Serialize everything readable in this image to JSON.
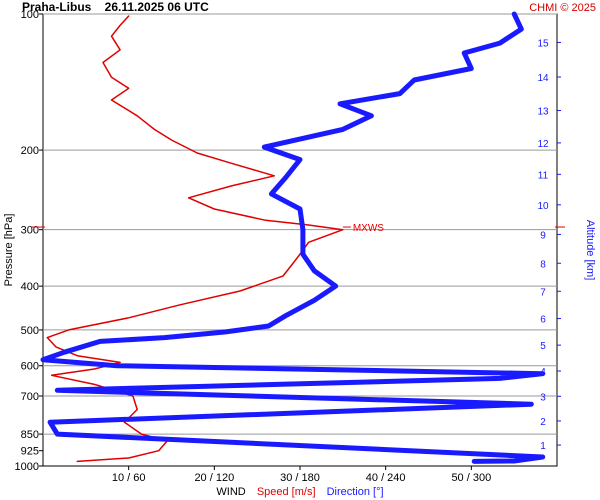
{
  "chart_data": {
    "type": "line",
    "title": "Praha-Libus    26.11.2025 06 UTC",
    "copyright": "CHMI © 2025",
    "ylabel_left": "Pressure [hPa]",
    "ylabel_right": "Altitude [km]",
    "xlabel_parts": [
      "WIND",
      "Speed [m/s]",
      "Direction [°]"
    ],
    "pressure_ticks": [
      100,
      200,
      300,
      400,
      500,
      600,
      700,
      850,
      925,
      1000
    ],
    "pressure_gridlines": [
      100,
      200,
      300,
      400,
      500,
      600,
      700,
      850
    ],
    "altitude_ticks_km": [
      1,
      2,
      3,
      4,
      5,
      6,
      7,
      8,
      9,
      10,
      11,
      12,
      13,
      14,
      15
    ],
    "speed_range_ms": [
      0,
      60
    ],
    "direction_range_deg": [
      0,
      360
    ],
    "x_ticks": [
      {
        "speed": 10,
        "direction": 60,
        "label": "10 / 60"
      },
      {
        "speed": 20,
        "direction": 120,
        "label": "20 / 120"
      },
      {
        "speed": 30,
        "direction": 180,
        "label": "30 / 180"
      },
      {
        "speed": 40,
        "direction": 240,
        "label": "40 / 240"
      },
      {
        "speed": 50,
        "direction": 300,
        "label": "50 / 300"
      }
    ],
    "max_wind_marker": {
      "label": "MXWS",
      "pressure_hpa": 296,
      "speed_ms": 35
    },
    "series": [
      {
        "name": "Speed [m/s]",
        "color": "#e00000",
        "points": [
          {
            "p": 977,
            "v": 4
          },
          {
            "p": 960,
            "v": 10
          },
          {
            "p": 925,
            "v": 13.5
          },
          {
            "p": 880,
            "v": 14.5
          },
          {
            "p": 850,
            "v": 11.5
          },
          {
            "p": 800,
            "v": 9.5
          },
          {
            "p": 750,
            "v": 11
          },
          {
            "p": 700,
            "v": 10.5
          },
          {
            "p": 660,
            "v": 6
          },
          {
            "p": 630,
            "v": 1
          },
          {
            "p": 610,
            "v": 6
          },
          {
            "p": 590,
            "v": 9
          },
          {
            "p": 570,
            "v": 4
          },
          {
            "p": 545,
            "v": 1.5
          },
          {
            "p": 520,
            "v": 0.5
          },
          {
            "p": 500,
            "v": 3
          },
          {
            "p": 470,
            "v": 10
          },
          {
            "p": 440,
            "v": 16
          },
          {
            "p": 410,
            "v": 23
          },
          {
            "p": 380,
            "v": 28
          },
          {
            "p": 360,
            "v": 29
          },
          {
            "p": 340,
            "v": 30
          },
          {
            "p": 320,
            "v": 31
          },
          {
            "p": 300,
            "v": 35
          },
          {
            "p": 293,
            "v": 31
          },
          {
            "p": 286,
            "v": 26
          },
          {
            "p": 270,
            "v": 20
          },
          {
            "p": 255,
            "v": 17
          },
          {
            "p": 240,
            "v": 22
          },
          {
            "p": 228,
            "v": 27
          },
          {
            "p": 214,
            "v": 22
          },
          {
            "p": 203,
            "v": 18
          },
          {
            "p": 190,
            "v": 15
          },
          {
            "p": 180,
            "v": 13
          },
          {
            "p": 168,
            "v": 11
          },
          {
            "p": 155,
            "v": 8
          },
          {
            "p": 146,
            "v": 10
          },
          {
            "p": 138,
            "v": 8
          },
          {
            "p": 128,
            "v": 7
          },
          {
            "p": 120,
            "v": 9
          },
          {
            "p": 112,
            "v": 8
          },
          {
            "p": 106,
            "v": 9
          },
          {
            "p": 101,
            "v": 10
          }
        ]
      },
      {
        "name": "Direction [°]",
        "color": "#1a1aff",
        "points": [
          {
            "p": 977,
            "d": 302
          },
          {
            "p": 975,
            "d": 330
          },
          {
            "p": 965,
            "d": 340
          },
          {
            "p": 955,
            "d": 350
          },
          {
            "p": 850,
            "d": 10
          },
          {
            "p": 800,
            "d": 5
          },
          {
            "p": 730,
            "d": 342
          },
          {
            "p": 680,
            "d": 10
          },
          {
            "p": 640,
            "d": 320
          },
          {
            "p": 625,
            "d": 350
          },
          {
            "p": 600,
            "d": 52
          },
          {
            "p": 582,
            "d": 0
          },
          {
            "p": 560,
            "d": 15
          },
          {
            "p": 530,
            "d": 40
          },
          {
            "p": 520,
            "d": 85
          },
          {
            "p": 505,
            "d": 128
          },
          {
            "p": 490,
            "d": 158
          },
          {
            "p": 465,
            "d": 170
          },
          {
            "p": 430,
            "d": 190
          },
          {
            "p": 400,
            "d": 205
          },
          {
            "p": 370,
            "d": 190
          },
          {
            "p": 340,
            "d": 182
          },
          {
            "p": 300,
            "d": 182
          },
          {
            "p": 270,
            "d": 180
          },
          {
            "p": 250,
            "d": 160
          },
          {
            "p": 230,
            "d": 170
          },
          {
            "p": 210,
            "d": 180
          },
          {
            "p": 197,
            "d": 155
          },
          {
            "p": 180,
            "d": 210
          },
          {
            "p": 168,
            "d": 230
          },
          {
            "p": 158,
            "d": 208
          },
          {
            "p": 150,
            "d": 250
          },
          {
            "p": 140,
            "d": 260
          },
          {
            "p": 132,
            "d": 300
          },
          {
            "p": 122,
            "d": 295
          },
          {
            "p": 116,
            "d": 320
          },
          {
            "p": 108,
            "d": 335
          },
          {
            "p": 100,
            "d": 330
          }
        ]
      }
    ]
  }
}
